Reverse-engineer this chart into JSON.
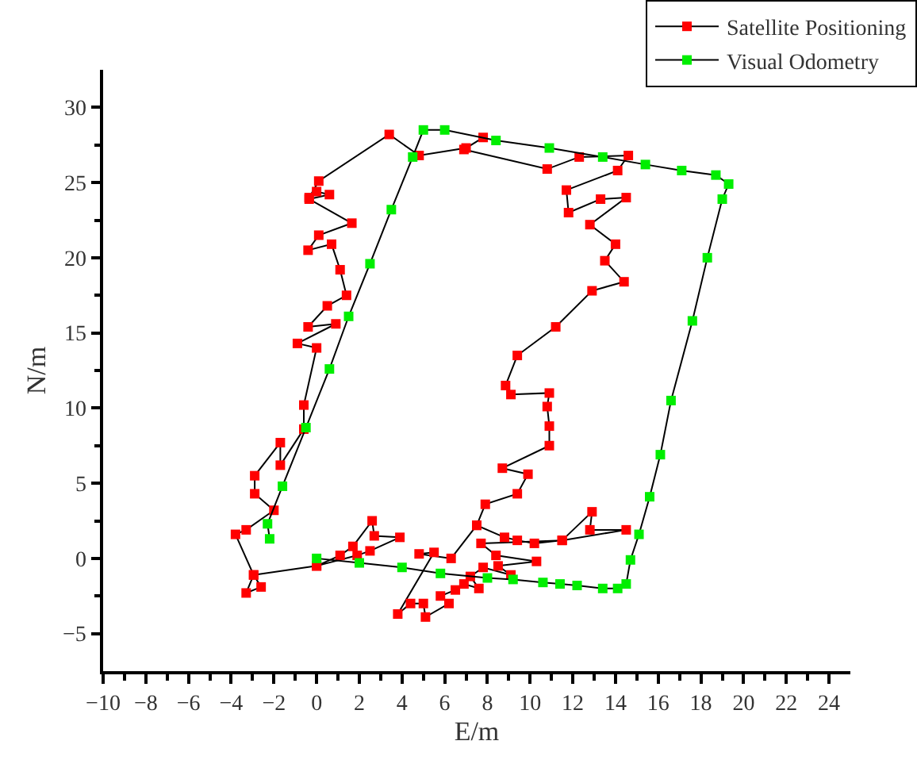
{
  "chart_data": {
    "type": "line",
    "xlabel": "E/m",
    "ylabel": "N/m",
    "xlim": [
      -10,
      25
    ],
    "ylim": [
      -7.5,
      32.5
    ],
    "xticks": [
      -10,
      -8,
      -6,
      -4,
      -2,
      0,
      2,
      4,
      6,
      8,
      10,
      12,
      14,
      16,
      18,
      20,
      22,
      24
    ],
    "yticks": [
      -5,
      0,
      5,
      10,
      15,
      20,
      25,
      30
    ],
    "grid": false,
    "legend": "top right",
    "marker": "square",
    "line_style": "solid",
    "series": [
      {
        "name": "Satellite Positioning",
        "color": "#ff0000",
        "x": [
          0,
          1.1,
          1.7,
          2.6,
          2.7,
          3.9,
          2.5,
          1.9,
          0,
          -2.95,
          -2.6,
          -3.3,
          -2.95,
          -3.8,
          -3.3,
          -2,
          -2.9,
          -2.9,
          -1.7,
          -1.7,
          -0.6,
          -0.6,
          0,
          -0.9,
          0.9,
          -0.4,
          0.5,
          1.4,
          1.1,
          0.7,
          -0.4,
          0.1,
          1.65,
          -0.35,
          0.6,
          0,
          -0.35,
          0.1,
          3.4,
          4.8,
          7,
          7.8,
          6.9,
          10.8,
          12.3,
          14.6,
          14.1,
          11.7,
          11.8,
          13.3,
          14.5,
          12.8,
          14,
          13.5,
          14.4,
          12.9,
          11.2,
          9.4,
          8.85,
          9.1,
          10.9,
          10.8,
          10.9,
          10.9,
          8.7,
          9.9,
          9.4,
          7.9,
          7.5,
          8.8,
          9.4,
          10.2,
          11.5,
          12.9,
          12.8,
          14.5,
          11.5,
          7.7,
          8.4,
          10.3,
          8.5,
          9.1,
          7.8,
          7.2,
          7.6,
          6.9,
          6.5,
          5.8,
          6.2,
          5.1,
          5,
          4.4,
          3.8,
          5.5,
          4.8,
          6.3,
          7.5
        ],
        "values": [
          -0.5,
          0.2,
          0.8,
          2.5,
          1.5,
          1.4,
          0.5,
          0.2,
          -0.5,
          -1.1,
          -1.9,
          -2.3,
          -1.1,
          1.6,
          1.9,
          3.2,
          4.3,
          5.5,
          7.7,
          6.2,
          8.6,
          10.2,
          14,
          14.3,
          15.6,
          15.4,
          16.8,
          17.5,
          19.2,
          20.9,
          20.5,
          21.5,
          22.3,
          23.9,
          24.2,
          24.4,
          24,
          25.1,
          28.2,
          26.8,
          27.3,
          28,
          27.2,
          25.9,
          26.7,
          26.8,
          25.8,
          24.5,
          23,
          23.9,
          24,
          22.2,
          20.9,
          19.8,
          18.4,
          17.8,
          15.4,
          13.5,
          11.5,
          10.9,
          11,
          10.1,
          8.8,
          7.5,
          6,
          5.6,
          4.3,
          3.6,
          2.2,
          1.4,
          1.2,
          1,
          1.2,
          3.1,
          1.9,
          1.9,
          1.2,
          1,
          0.2,
          -0.2,
          -0.5,
          -1.1,
          -0.6,
          -1.2,
          -2,
          -1.7,
          -2.1,
          -2.5,
          -3,
          -3.9,
          -3,
          -3,
          -3.7,
          0.4,
          0.3,
          0,
          2.2
        ]
      },
      {
        "name": "Visual Odometry",
        "color": "#00ee00",
        "x": [
          0,
          2,
          4,
          5.8,
          8,
          9.2,
          10.6,
          11.4,
          12.2,
          13.4,
          14.1,
          14.5,
          14.7,
          15.1,
          15.6,
          16.1,
          16.6,
          17.6,
          18.3,
          19,
          19.3,
          18.7,
          17.1,
          15.4,
          13.4,
          10.9,
          8.4,
          6,
          5,
          4.5,
          3.5,
          2.5,
          1.5,
          0.6,
          -0.5,
          -1.6,
          -2.3,
          -2.2
        ],
        "values": [
          0,
          -0.3,
          -0.6,
          -1,
          -1.3,
          -1.4,
          -1.6,
          -1.7,
          -1.8,
          -2,
          -2,
          -1.7,
          -0.1,
          1.6,
          4.1,
          6.9,
          10.5,
          15.8,
          20,
          23.9,
          24.9,
          25.5,
          25.8,
          26.2,
          26.7,
          27.3,
          27.8,
          28.5,
          28.5,
          26.7,
          23.2,
          19.6,
          16.1,
          12.6,
          8.7,
          4.8,
          2.3,
          1.3
        ]
      }
    ]
  }
}
